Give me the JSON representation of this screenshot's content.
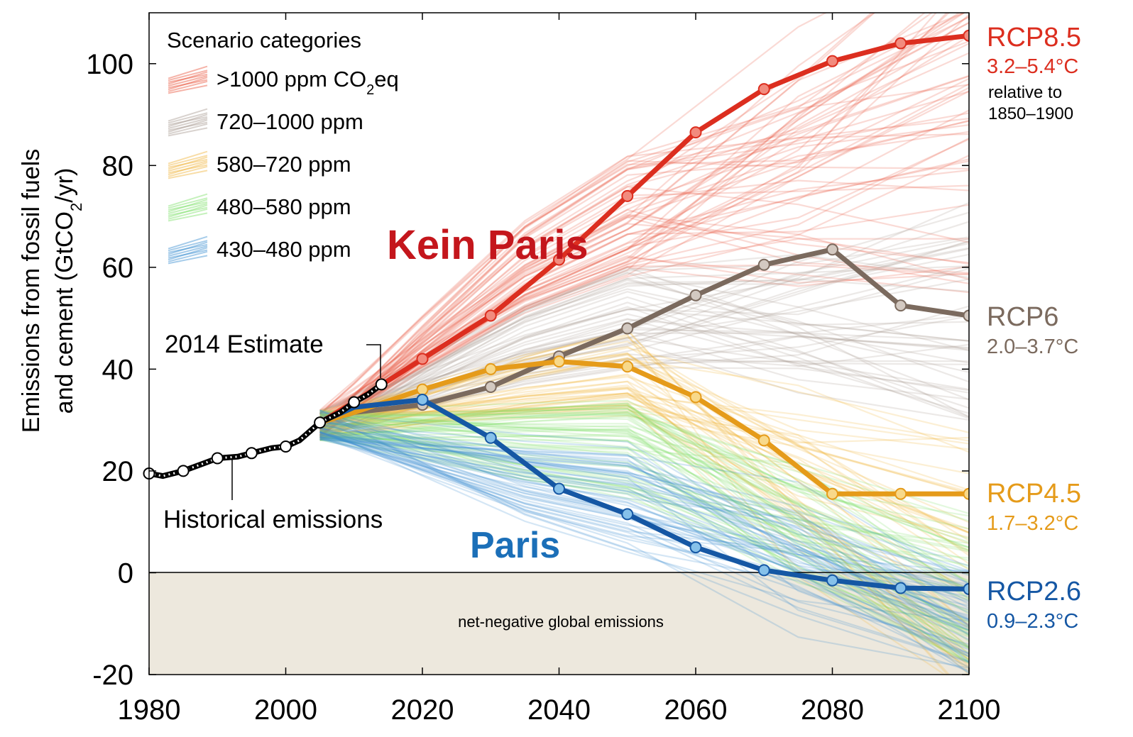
{
  "chart_data": {
    "type": "line",
    "xlabel": "",
    "ylabel_line1": "Emissions from fossil fuels",
    "ylabel_line2_prefix": "and cement (GtCO",
    "ylabel_line2_sub": "2",
    "ylabel_line2_suffix": "/yr)",
    "xlim": [
      1980,
      2100
    ],
    "ylim": [
      -20,
      110
    ],
    "x_ticks": [
      "1980",
      "2000",
      "2020",
      "2040",
      "2060",
      "2080",
      "2100"
    ],
    "y_ticks": [
      "-20",
      "0",
      "20",
      "40",
      "60",
      "80",
      "100"
    ],
    "legend_title": "Scenario categories",
    "legend_position": "top-left",
    "legend": [
      {
        "label": ">1000 ppm CO",
        "sub": "2",
        "suffix": "eq",
        "color": "#e8573f"
      },
      {
        "label": "720–1000 ppm",
        "sub": "",
        "suffix": "",
        "color": "#a89b92"
      },
      {
        "label": "580–720 ppm",
        "sub": "",
        "suffix": "",
        "color": "#f0b43c"
      },
      {
        "label": "480–580 ppm",
        "sub": "",
        "suffix": "",
        "color": "#7fe06a"
      },
      {
        "label": "430–480 ppm",
        "sub": "",
        "suffix": "",
        "color": "#3a8fd0"
      }
    ],
    "annotations": {
      "estimate_2014": "2014 Estimate",
      "historical": "Historical emissions",
      "kein_paris": "Kein Paris",
      "paris": "Paris",
      "negative_region": "net-negative global emissions"
    },
    "historical_series": {
      "name": "Historical emissions",
      "color": "#000000",
      "x": [
        1980,
        1982,
        1985,
        1988,
        1990,
        1993,
        1995,
        1998,
        2000,
        2002,
        2005,
        2008,
        2010,
        2012,
        2014
      ],
      "y": [
        19.5,
        19.0,
        20.0,
        21.5,
        22.5,
        22.8,
        23.5,
        24.5,
        24.8,
        26.0,
        29.5,
        31.5,
        33.5,
        35.0,
        37.0
      ],
      "marker_x": [
        1980,
        1985,
        1990,
        1995,
        2000,
        2005,
        2010,
        2014
      ],
      "marker_y": [
        19.5,
        20.0,
        22.5,
        23.5,
        24.8,
        29.5,
        33.5,
        37.0
      ]
    },
    "series": [
      {
        "name": "RCP8.5",
        "range": "3.2–5.4°C",
        "note1": "relative to",
        "note2": "1850–1900",
        "color": "#dc2e1f",
        "marker_fill": "#f28b7e",
        "x": [
          2005,
          2010,
          2020,
          2030,
          2040,
          2050,
          2060,
          2070,
          2080,
          2090,
          2100
        ],
        "y": [
          29.5,
          33.5,
          42.0,
          50.5,
          61.5,
          74.0,
          86.5,
          95.0,
          100.5,
          104.0,
          105.5
        ]
      },
      {
        "name": "RCP6",
        "range": "2.0–3.7°C",
        "color": "#7b6a5e",
        "marker_fill": "#d3c9c1",
        "x": [
          2005,
          2010,
          2020,
          2030,
          2040,
          2050,
          2060,
          2070,
          2080,
          2090,
          2100
        ],
        "y": [
          29.5,
          31.5,
          33.0,
          36.5,
          42.5,
          48.0,
          54.5,
          60.5,
          63.5,
          52.5,
          50.5
        ]
      },
      {
        "name": "RCP4.5",
        "range": "1.7–3.2°C",
        "color": "#e59b1a",
        "marker_fill": "#f8d98a",
        "x": [
          2005,
          2010,
          2020,
          2030,
          2040,
          2050,
          2060,
          2070,
          2080,
          2090,
          2100
        ],
        "y": [
          29.5,
          31.5,
          36.0,
          40.0,
          41.5,
          40.5,
          34.5,
          26.0,
          15.5,
          15.5,
          15.5
        ]
      },
      {
        "name": "RCP2.6",
        "range": "0.9–2.3°C",
        "color": "#1557a4",
        "marker_fill": "#86c1ea",
        "x": [
          2005,
          2010,
          2020,
          2030,
          2040,
          2050,
          2060,
          2070,
          2080,
          2090,
          2100
        ],
        "y": [
          29.5,
          32.5,
          34.0,
          26.5,
          16.5,
          11.5,
          5.0,
          0.5,
          -1.5,
          -3.0,
          -3.2
        ]
      }
    ],
    "background_bundles": [
      {
        "category": ">1000 ppm",
        "color": "#e8573f",
        "count": 60,
        "y2050": [
          58,
          82
        ],
        "y2100": [
          55,
          130
        ]
      },
      {
        "category": "720–1000 ppm",
        "color": "#a89b92",
        "count": 45,
        "y2050": [
          40,
          60
        ],
        "y2100": [
          30,
          75
        ]
      },
      {
        "category": "580–720 ppm",
        "color": "#f0b43c",
        "count": 45,
        "y2050": [
          30,
          48
        ],
        "y2100": [
          -25,
          28
        ]
      },
      {
        "category": "480–580 ppm",
        "color": "#7fe06a",
        "count": 55,
        "y2050": [
          14,
          34
        ],
        "y2100": [
          -18,
          12
        ]
      },
      {
        "category": "430–480 ppm",
        "color": "#3a8fd0",
        "count": 55,
        "y2050": [
          4,
          26
        ],
        "y2100": [
          -20,
          2
        ]
      }
    ],
    "grid": false
  }
}
